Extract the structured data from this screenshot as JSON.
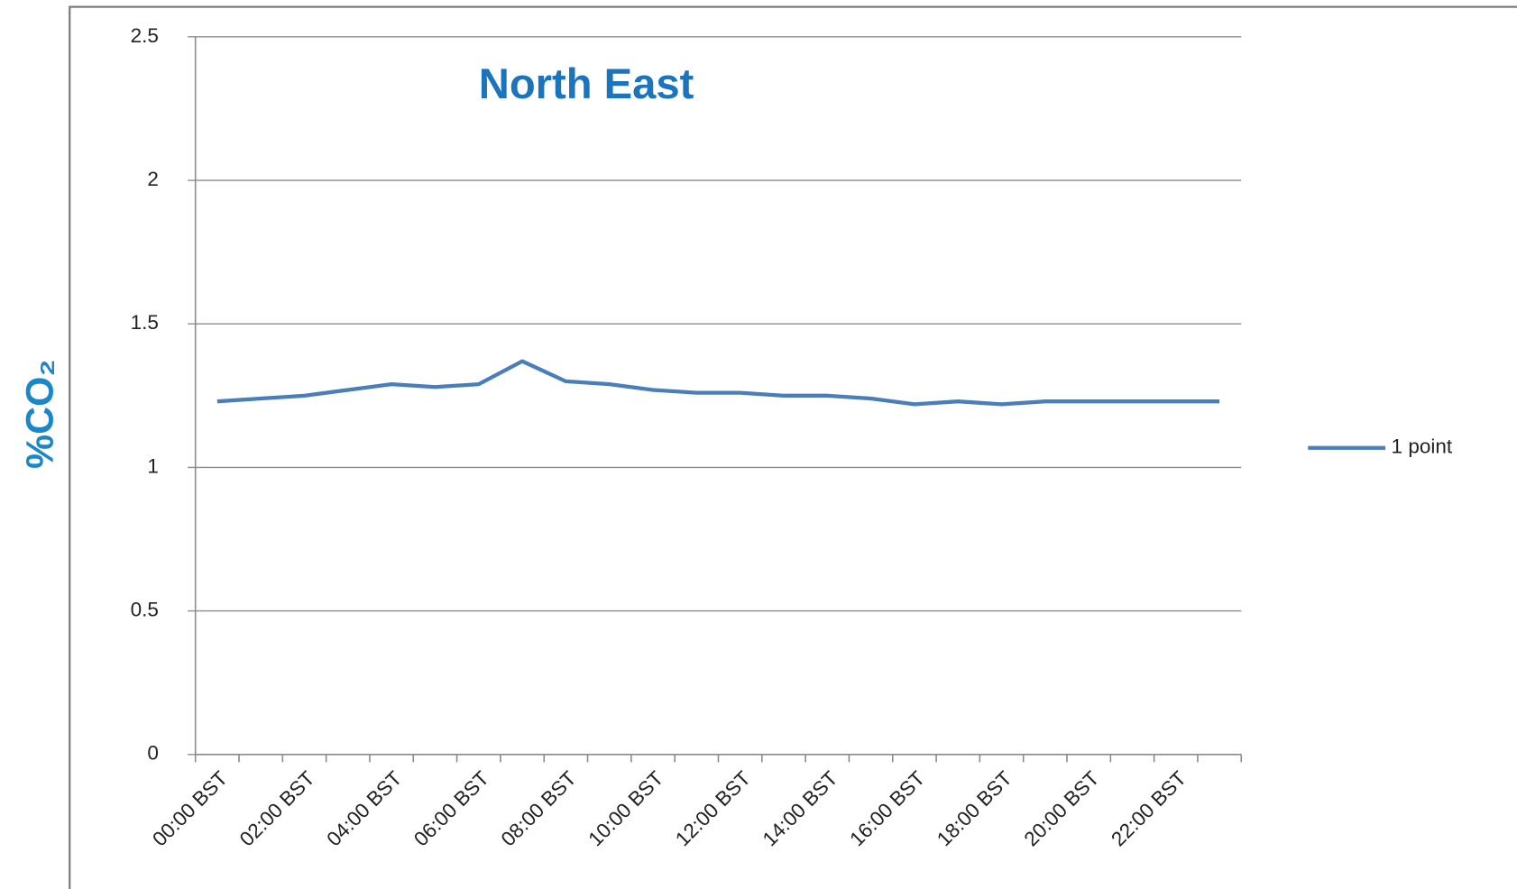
{
  "chart_data": {
    "type": "line",
    "title": "North East",
    "y_label": "%CO₂",
    "categories": [
      "00:00 BST",
      null,
      "02:00 BST",
      null,
      "04:00 BST",
      null,
      "06:00 BST",
      null,
      "08:00 BST",
      null,
      "10:00 BST",
      null,
      "12:00 BST",
      null,
      "14:00 BST",
      null,
      "16:00 BST",
      null,
      "18:00 BST",
      null,
      "20:00 BST",
      null,
      "22:00 BST",
      null
    ],
    "series": [
      {
        "name": "1 point",
        "color": "#4a7ebb",
        "values": [
          1.23,
          1.24,
          1.25,
          1.27,
          1.29,
          1.28,
          1.29,
          1.37,
          1.3,
          1.29,
          1.27,
          1.26,
          1.26,
          1.25,
          1.25,
          1.24,
          1.22,
          1.23,
          1.22,
          1.23,
          1.23,
          1.23,
          1.23,
          1.23
        ]
      }
    ],
    "ylim": [
      0,
      2.5
    ],
    "yticks": [
      0,
      0.5,
      1,
      1.5,
      2,
      2.5
    ],
    "grid": true,
    "legend": "right"
  }
}
